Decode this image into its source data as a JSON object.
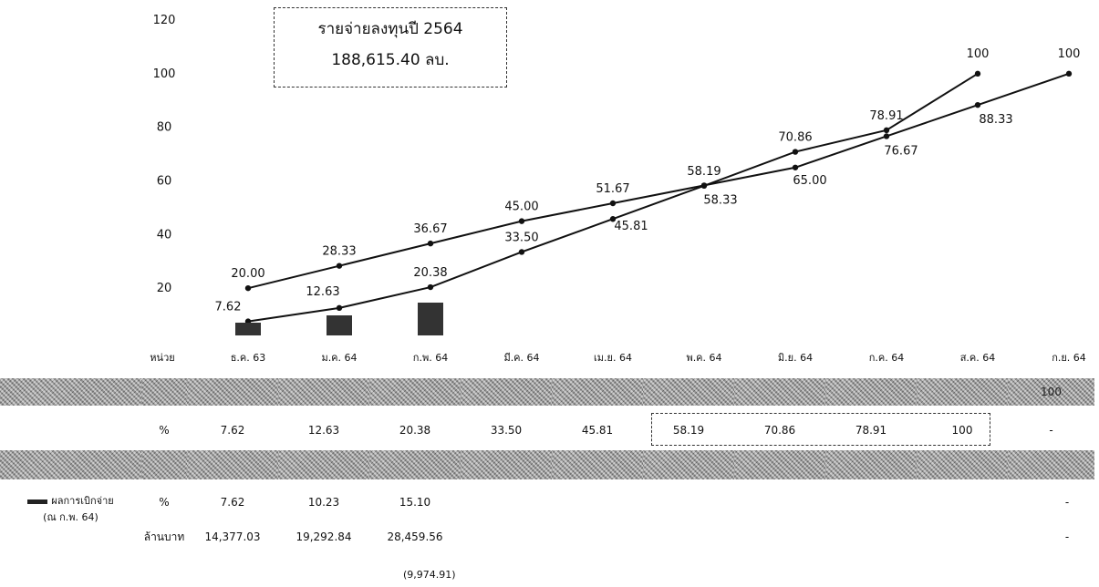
{
  "callout": {
    "line1": "รายจ่ายลงทุนปี 2564",
    "line2": "188,615.40 ลบ."
  },
  "chart_data": {
    "type": "line",
    "categories": [
      "ธ.ค. 63",
      "ม.ค. 64",
      "ก.พ. 64",
      "มี.ค. 64",
      "เม.ย. 64",
      "พ.ค. 64",
      "มิ.ย. 64",
      "ก.ค. 64",
      "ส.ค. 64",
      "ก.ย. 64"
    ],
    "yticks": [
      20,
      40,
      60,
      80,
      100,
      120
    ],
    "ylim": [
      0,
      120
    ],
    "series": [
      {
        "values": [
          20.0,
          28.33,
          36.67,
          45.0,
          51.67,
          58.33,
          65.0,
          76.67,
          88.33,
          100
        ]
      },
      {
        "values": [
          7.62,
          12.63,
          20.38,
          33.5,
          45.81,
          58.19,
          70.86,
          78.91,
          100,
          null
        ]
      }
    ],
    "labels": {
      "s1": [
        "20.00",
        "28.33",
        "36.67",
        "45.00",
        "51.67",
        "58.33",
        "65.00",
        "76.67",
        "88.33",
        "100"
      ],
      "s2": [
        "7.62",
        "12.63",
        "20.38",
        "33.50",
        "45.81",
        "58.19",
        "70.86",
        "78.91",
        "100",
        ""
      ]
    }
  },
  "table": {
    "unit_header": "หน่วย",
    "pct": "%",
    "mb": "ล้านบาท",
    "plan_last": "100",
    "target_pct": [
      "7.62",
      "12.63",
      "20.38",
      "33.50",
      "45.81",
      "58.19",
      "70.86",
      "78.91",
      "100",
      "-"
    ],
    "actual_label": "ผลการเบิกจ่าย",
    "actual_sub": "(ณ ก.พ. 64)",
    "actual_pct": [
      "7.62",
      "10.23",
      "15.10"
    ],
    "actual_mb": [
      "14,377.03",
      "19,292.84",
      "28,459.56"
    ],
    "dash": "-",
    "footnote": "(9,974.91)"
  },
  "colors": {
    "line": "#111111"
  }
}
